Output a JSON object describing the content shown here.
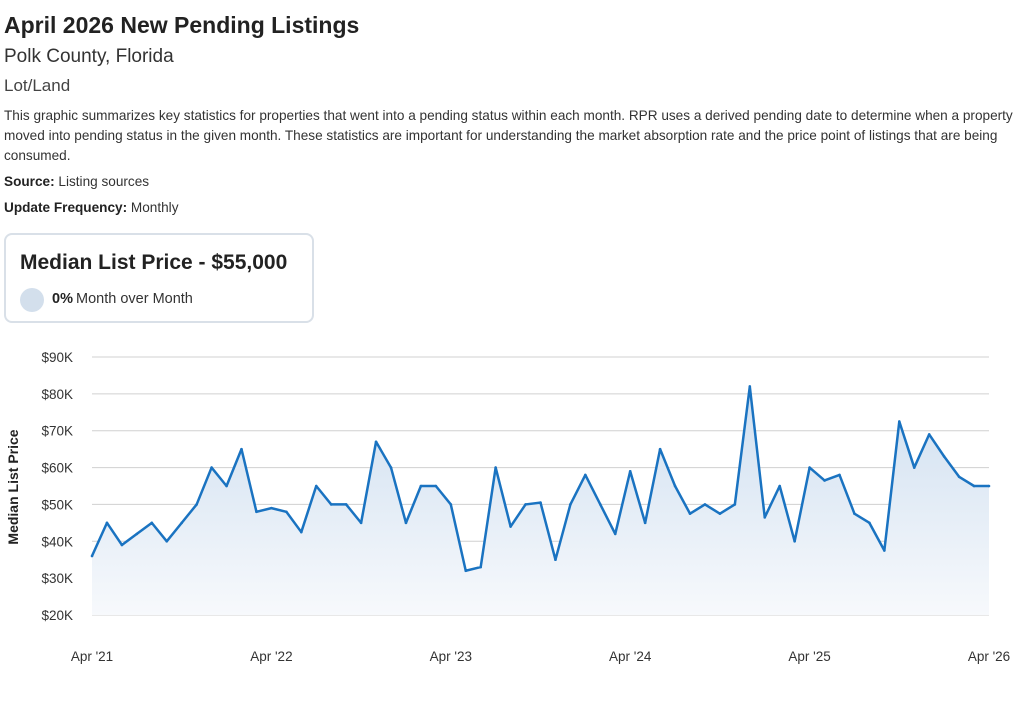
{
  "header": {
    "title": "April 2026 New Pending Listings",
    "location": "Polk County, Florida",
    "property_type": "Lot/Land",
    "description": "This graphic summarizes key statistics for properties that went into a pending status within each month. RPR uses a derived pending date to determine when a property moved into pending status in the given month. These statistics are important for understanding the market absorption rate and the price point of listings that are being consumed.",
    "source_label": "Source:",
    "source_value": "Listing sources",
    "frequency_label": "Update Frequency:",
    "frequency_value": "Monthly"
  },
  "card": {
    "title": "Median List Price - $55,000",
    "change": "0%",
    "change_label": "Month over Month"
  },
  "colors": {
    "line": "#1a73c1",
    "area_top": "#cfdff0",
    "area_bottom": "#f7f9fc",
    "grid": "#d0d0d0"
  },
  "chart_data": {
    "type": "area",
    "ylabel": "Median List Price",
    "xlabel": "",
    "ylim": [
      20000,
      90000
    ],
    "y_ticks": [
      20000,
      30000,
      40000,
      50000,
      60000,
      70000,
      80000,
      90000
    ],
    "y_tick_labels": [
      "$20K",
      "$30K",
      "$40K",
      "$50K",
      "$60K",
      "$70K",
      "$80K",
      "$90K"
    ],
    "x_tick_labels": [
      "Apr '21",
      "Apr '22",
      "Apr '23",
      "Apr '24",
      "Apr '25",
      "Apr '26"
    ],
    "x_tick_index": [
      0,
      12,
      24,
      36,
      48,
      60
    ],
    "x": [
      "2021-04",
      "2021-05",
      "2021-06",
      "2021-07",
      "2021-08",
      "2021-09",
      "2021-10",
      "2021-11",
      "2021-12",
      "2022-01",
      "2022-02",
      "2022-03",
      "2022-04",
      "2022-05",
      "2022-06",
      "2022-07",
      "2022-08",
      "2022-09",
      "2022-10",
      "2022-11",
      "2022-12",
      "2023-01",
      "2023-02",
      "2023-03",
      "2023-04",
      "2023-05",
      "2023-06",
      "2023-07",
      "2023-08",
      "2023-09",
      "2023-10",
      "2023-11",
      "2023-12",
      "2024-01",
      "2024-02",
      "2024-03",
      "2024-04",
      "2024-05",
      "2024-06",
      "2024-07",
      "2024-08",
      "2024-09",
      "2024-10",
      "2024-11",
      "2024-12",
      "2025-01",
      "2025-02",
      "2025-03",
      "2025-04",
      "2025-05",
      "2025-06",
      "2025-07",
      "2025-08",
      "2025-09",
      "2025-10",
      "2025-11",
      "2025-12",
      "2026-01",
      "2026-02",
      "2026-03",
      "2026-04"
    ],
    "series": [
      {
        "name": "Median List Price",
        "values": [
          36000,
          45000,
          39000,
          42000,
          45000,
          40000,
          45000,
          50000,
          60000,
          55000,
          65000,
          48000,
          49000,
          48000,
          42500,
          55000,
          50000,
          50000,
          45000,
          67000,
          60000,
          45000,
          55000,
          55000,
          50000,
          32000,
          33000,
          60000,
          44000,
          50000,
          50500,
          35000,
          50000,
          58000,
          50000,
          42000,
          59000,
          45000,
          65000,
          55000,
          47500,
          50000,
          47500,
          50000,
          82000,
          46500,
          55000,
          40000,
          60000,
          56500,
          58000,
          47500,
          45000,
          37500,
          72500,
          60000,
          69000,
          63000,
          57500,
          55000,
          55000
        ]
      }
    ]
  }
}
